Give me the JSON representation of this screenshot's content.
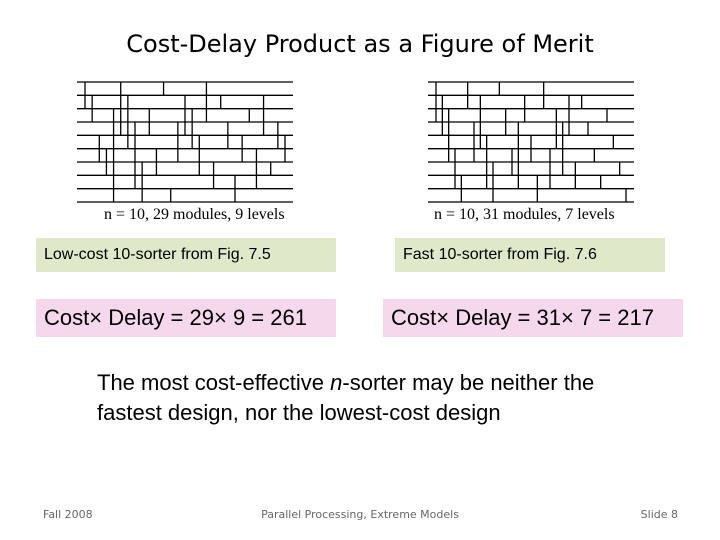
{
  "slide": {
    "title": "Cost-Delay Product as a Figure of Merit",
    "left": {
      "caption": "n = 10, 29 modules, 9 levels",
      "label": "Low-cost 10-sorter from Fig. 7.5",
      "formula": "Cost× Delay = 29× 9 = 261"
    },
    "right": {
      "caption": "n = 10, 31 modules, 7 levels",
      "label": "Fast 10-sorter from Fig. 7.6",
      "formula": "Cost× Delay = 31× 7 = 217"
    },
    "note_pre": "The most cost-effective ",
    "note_em": "n",
    "note_post": "-sorter may be neither the fastest design, nor the lowest-cost design",
    "footer": {
      "left": "Fall 2008",
      "center": "Parallel Processing, Extreme Models",
      "right": "Slide 8"
    }
  },
  "networks": {
    "left": {
      "wires": 10,
      "comparators": [
        [
          0,
          2
        ],
        [
          1,
          3
        ],
        [
          4,
          6
        ],
        [
          5,
          7
        ],
        [
          2,
          9
        ],
        [
          0,
          4
        ],
        [
          1,
          5
        ],
        [
          3,
          8
        ],
        [
          6,
          9
        ],
        [
          2,
          4
        ],
        [
          5,
          7
        ],
        [
          0,
          1
        ],
        [
          8,
          9
        ],
        [
          3,
          6
        ],
        [
          1,
          4
        ],
        [
          2,
          5
        ],
        [
          4,
          7
        ],
        [
          0,
          3
        ],
        [
          6,
          8
        ],
        [
          1,
          2
        ],
        [
          3,
          5
        ],
        [
          7,
          9
        ],
        [
          4,
          6
        ],
        [
          2,
          3
        ],
        [
          5,
          8
        ],
        [
          1,
          4
        ],
        [
          6,
          7
        ],
        [
          3,
          5
        ],
        [
          4,
          6
        ]
      ]
    },
    "right": {
      "wires": 10,
      "comparators": [
        [
          0,
          3
        ],
        [
          1,
          4
        ],
        [
          2,
          6
        ],
        [
          5,
          8
        ],
        [
          7,
          9
        ],
        [
          0,
          2
        ],
        [
          3,
          6
        ],
        [
          1,
          5
        ],
        [
          4,
          8
        ],
        [
          6,
          9
        ],
        [
          0,
          1
        ],
        [
          2,
          4
        ],
        [
          5,
          7
        ],
        [
          3,
          8
        ],
        [
          1,
          3
        ],
        [
          4,
          6
        ],
        [
          7,
          9
        ],
        [
          0,
          2
        ],
        [
          5,
          8
        ],
        [
          2,
          5
        ],
        [
          3,
          7
        ],
        [
          1,
          4
        ],
        [
          6,
          8
        ],
        [
          1,
          2
        ],
        [
          3,
          4
        ],
        [
          5,
          6
        ],
        [
          7,
          8
        ],
        [
          2,
          3
        ],
        [
          4,
          5
        ],
        [
          6,
          7
        ],
        [
          8,
          9
        ]
      ]
    }
  }
}
